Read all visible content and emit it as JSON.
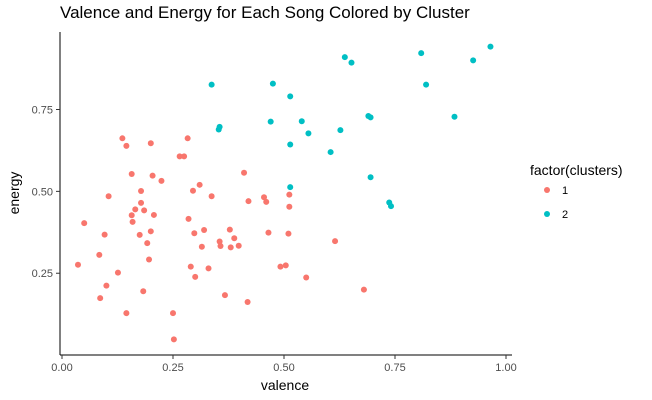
{
  "chart_data": {
    "type": "scatter",
    "title": "Valence and Energy for Each Song Colored by Cluster",
    "xlabel": "valence",
    "ylabel": "energy",
    "xlim": [
      0,
      1
    ],
    "ylim": [
      0.04,
      0.95
    ],
    "x_ticks": [
      0.0,
      0.25,
      0.5,
      0.75,
      1.0
    ],
    "x_tick_labels": [
      "0.00",
      "0.25",
      "0.50",
      "0.75",
      "1.00"
    ],
    "y_ticks": [
      0.25,
      0.5,
      0.75
    ],
    "y_tick_labels": [
      "0.25",
      "0.50",
      "0.75"
    ],
    "grid": false,
    "legend": {
      "title": "factor(clusters)",
      "position": "right"
    },
    "series": [
      {
        "name": "1",
        "color": "#f8766d",
        "points": [
          [
            0.036,
            0.276
          ],
          [
            0.05,
            0.403
          ],
          [
            0.084,
            0.306
          ],
          [
            0.086,
            0.174
          ],
          [
            0.096,
            0.368
          ],
          [
            0.1,
            0.212
          ],
          [
            0.105,
            0.485
          ],
          [
            0.126,
            0.252
          ],
          [
            0.136,
            0.662
          ],
          [
            0.145,
            0.639
          ],
          [
            0.145,
            0.128
          ],
          [
            0.157,
            0.427
          ],
          [
            0.157,
            0.553
          ],
          [
            0.159,
            0.407
          ],
          [
            0.165,
            0.445
          ],
          [
            0.175,
            0.367
          ],
          [
            0.178,
            0.465
          ],
          [
            0.178,
            0.501
          ],
          [
            0.183,
            0.195
          ],
          [
            0.185,
            0.442
          ],
          [
            0.192,
            0.342
          ],
          [
            0.196,
            0.292
          ],
          [
            0.2,
            0.378
          ],
          [
            0.2,
            0.647
          ],
          [
            0.204,
            0.548
          ],
          [
            0.207,
            0.428
          ],
          [
            0.224,
            0.532
          ],
          [
            0.25,
            0.128
          ],
          [
            0.252,
            0.048
          ],
          [
            0.265,
            0.607
          ],
          [
            0.275,
            0.607
          ],
          [
            0.283,
            0.662
          ],
          [
            0.285,
            0.416
          ],
          [
            0.29,
            0.27
          ],
          [
            0.295,
            0.502
          ],
          [
            0.298,
            0.372
          ],
          [
            0.3,
            0.239
          ],
          [
            0.31,
            0.52
          ],
          [
            0.315,
            0.331
          ],
          [
            0.32,
            0.382
          ],
          [
            0.33,
            0.265
          ],
          [
            0.337,
            0.485
          ],
          [
            0.355,
            0.347
          ],
          [
            0.357,
            0.333
          ],
          [
            0.367,
            0.183
          ],
          [
            0.378,
            0.383
          ],
          [
            0.38,
            0.329
          ],
          [
            0.388,
            0.357
          ],
          [
            0.398,
            0.334
          ],
          [
            0.41,
            0.557
          ],
          [
            0.418,
            0.162
          ],
          [
            0.42,
            0.47
          ],
          [
            0.455,
            0.482
          ],
          [
            0.46,
            0.468
          ],
          [
            0.465,
            0.374
          ],
          [
            0.492,
            0.27
          ],
          [
            0.504,
            0.274
          ],
          [
            0.51,
            0.371
          ],
          [
            0.512,
            0.453
          ],
          [
            0.512,
            0.49
          ],
          [
            0.55,
            0.237
          ],
          [
            0.615,
            0.348
          ],
          [
            0.68,
            0.2
          ]
        ]
      },
      {
        "name": "2",
        "color": "#00bfc4",
        "points": [
          [
            0.337,
            0.826
          ],
          [
            0.353,
            0.689
          ],
          [
            0.355,
            0.697
          ],
          [
            0.47,
            0.713
          ],
          [
            0.475,
            0.829
          ],
          [
            0.514,
            0.79
          ],
          [
            0.514,
            0.643
          ],
          [
            0.514,
            0.513
          ],
          [
            0.54,
            0.714
          ],
          [
            0.555,
            0.677
          ],
          [
            0.605,
            0.62
          ],
          [
            0.627,
            0.687
          ],
          [
            0.637,
            0.91
          ],
          [
            0.652,
            0.893
          ],
          [
            0.69,
            0.73
          ],
          [
            0.695,
            0.726
          ],
          [
            0.695,
            0.543
          ],
          [
            0.737,
            0.466
          ],
          [
            0.741,
            0.455
          ],
          [
            0.809,
            0.922
          ],
          [
            0.82,
            0.826
          ],
          [
            0.884,
            0.728
          ],
          [
            0.926,
            0.9
          ],
          [
            0.965,
            0.942
          ]
        ]
      }
    ]
  }
}
